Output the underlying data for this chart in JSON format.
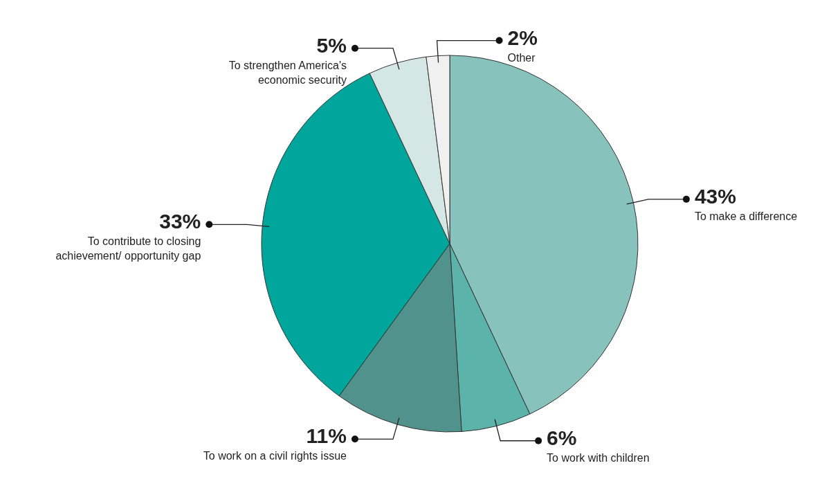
{
  "chart_data": {
    "type": "pie",
    "categories": [
      "To make a difference",
      "To work with children",
      "To work on a civil rights issue",
      "To contribute to closing achievement/ opportunity gap",
      "To strengthen America's economic security",
      "Other"
    ],
    "values": [
      43,
      6,
      11,
      33,
      5,
      2
    ],
    "colors": [
      "#88c2bd",
      "#5bb3aa",
      "#52928c",
      "#00a59b",
      "#d5e7e5",
      "#f0f0f0"
    ],
    "value_labels": [
      "43%",
      "6%",
      "11%",
      "33%",
      "5%",
      "2%"
    ],
    "legend": false
  }
}
